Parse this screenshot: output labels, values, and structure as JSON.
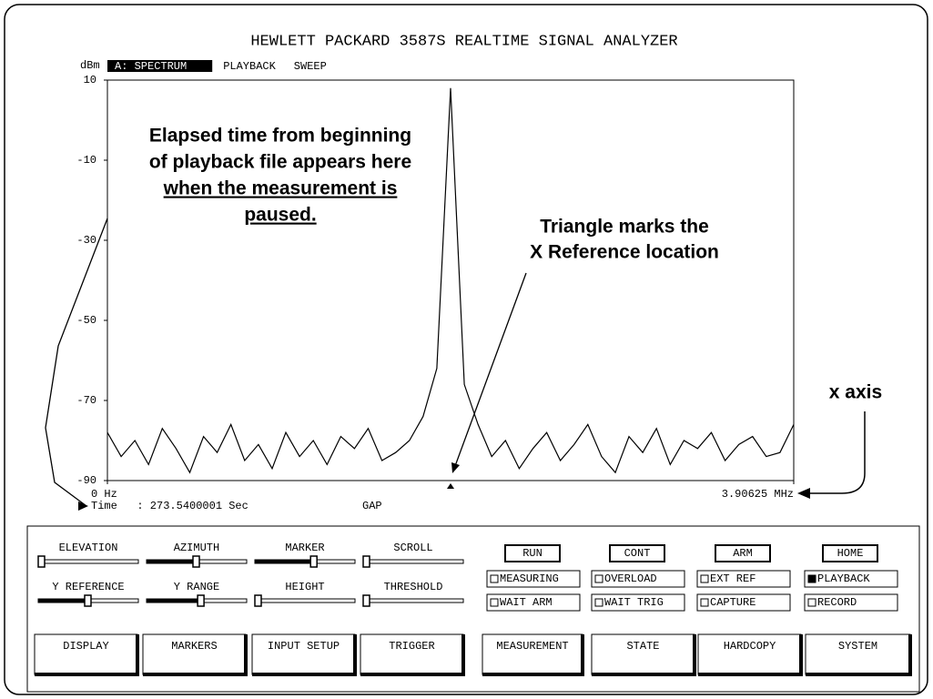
{
  "header": {
    "title": "HEWLETT PACKARD 3587S REALTIME SIGNAL ANALYZER"
  },
  "tabs": [
    {
      "label": "A: SPECTRUM",
      "active": true
    },
    {
      "label": "PLAYBACK",
      "active": false
    },
    {
      "label": "SWEEP",
      "active": false
    }
  ],
  "chart_data": {
    "type": "line",
    "y_label": "dBm",
    "ylim": [
      -90,
      10
    ],
    "yticks": [
      10,
      -10,
      -30,
      -50,
      -70,
      -90
    ],
    "xlim": [
      0,
      3.90625
    ],
    "xticks": [
      {
        "value": 0,
        "label": "0 Hz"
      },
      {
        "value": 3.90625,
        "label": "3.90625 MHz"
      }
    ],
    "color": "#000000",
    "x": [
      0,
      0.078125,
      0.15625,
      0.234375,
      0.3125,
      0.390625,
      0.46875,
      0.546875,
      0.625,
      0.703125,
      0.78125,
      0.859375,
      0.9375,
      1.015625,
      1.09375,
      1.171875,
      1.25,
      1.328125,
      1.40625,
      1.484375,
      1.5625,
      1.640625,
      1.71875,
      1.796875,
      1.875,
      1.953125,
      2.03125,
      2.109375,
      2.1875,
      2.265625,
      2.34375,
      2.421875,
      2.5,
      2.578125,
      2.65625,
      2.734375,
      2.8125,
      2.890625,
      2.96875,
      3.046875,
      3.125,
      3.203125,
      3.28125,
      3.359375,
      3.4375,
      3.515625,
      3.59375,
      3.671875,
      3.75,
      3.828125,
      3.90625
    ],
    "values": [
      -78,
      -84,
      -80,
      -86,
      -77,
      -82,
      -88,
      -79,
      -83,
      -76,
      -85,
      -81,
      -87,
      -78,
      -84,
      -80,
      -86,
      -79,
      -82,
      -77,
      -85,
      -83,
      -80,
      -74,
      -62,
      8,
      -66,
      -76,
      -84,
      -80,
      -87,
      -82,
      -78,
      -85,
      -81,
      -76,
      -84,
      -88,
      -79,
      -83,
      -77,
      -86,
      -80,
      -82,
      -78,
      -85,
      -81,
      -79,
      -84,
      -83,
      -76
    ],
    "x_reference": 1.953125
  },
  "status": {
    "time": "Time   : 273.5400001 Sec",
    "mode": "GAP"
  },
  "annotations": {
    "elapsed": [
      "Elapsed time from beginning",
      "of playback file appears here",
      "when the measurement is",
      "paused."
    ],
    "triangle": [
      "Triangle marks the",
      "X Reference location"
    ],
    "x_axis": "x axis"
  },
  "sliders": [
    {
      "label": "ELEVATION",
      "value": 0
    },
    {
      "label": "AZIMUTH",
      "value": 50
    },
    {
      "label": "MARKER",
      "value": 60
    },
    {
      "label": "SCROLL",
      "value": 0
    },
    {
      "label": "Y REFERENCE",
      "value": 50
    },
    {
      "label": "Y RANGE",
      "value": 55
    },
    {
      "label": "HEIGHT",
      "value": 0
    },
    {
      "label": "THRESHOLD",
      "value": 0
    }
  ],
  "buttons": [
    "RUN",
    "CONT",
    "ARM",
    "HOME"
  ],
  "indicators": [
    {
      "label": "MEASURING",
      "on": false
    },
    {
      "label": "OVERLOAD",
      "on": false
    },
    {
      "label": "EXT REF",
      "on": false
    },
    {
      "label": "PLAYBACK",
      "on": true
    },
    {
      "label": "WAIT ARM",
      "on": false
    },
    {
      "label": "WAIT TRIG",
      "on": false
    },
    {
      "label": "CAPTURE",
      "on": false
    },
    {
      "label": "RECORD",
      "on": false
    }
  ],
  "softkeys": [
    "DISPLAY",
    "MARKERS",
    "INPUT SETUP",
    "TRIGGER",
    "MEASUREMENT",
    "STATE",
    "HARDCOPY",
    "SYSTEM"
  ]
}
